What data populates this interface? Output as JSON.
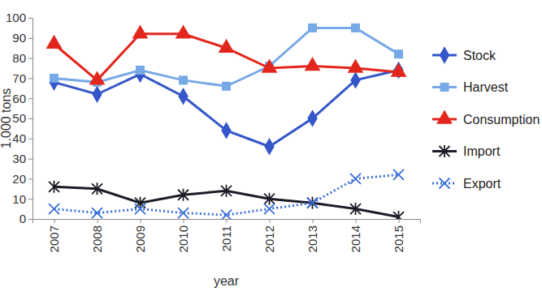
{
  "chart_data": {
    "type": "line",
    "x_label": "year",
    "y_label": "1.000 tons",
    "categories": [
      "2007",
      "2008",
      "2009",
      "2010",
      "2011",
      "2012",
      "2013",
      "2014",
      "2015"
    ],
    "series": [
      {
        "name": "Stock",
        "color": "#3456c8",
        "marker": "diamond",
        "line_style": "solid",
        "values": [
          68,
          62,
          72,
          61,
          44,
          36,
          50,
          69,
          74
        ]
      },
      {
        "name": "Harvest",
        "color": "#77a9e6",
        "marker": "square",
        "line_style": "solid",
        "values": [
          70,
          68,
          74,
          69,
          66,
          76,
          95,
          95,
          82
        ]
      },
      {
        "name": "Consumption",
        "color": "#e3261c",
        "marker": "triangle",
        "line_style": "solid",
        "values": [
          87,
          69,
          92,
          92,
          85,
          75,
          76,
          75,
          73
        ]
      },
      {
        "name": "Import",
        "color": "#1c1c28",
        "marker": "star",
        "line_style": "solid",
        "values": [
          16,
          15,
          8,
          12,
          14,
          10,
          8,
          5,
          1
        ]
      },
      {
        "name": "Export",
        "color": "#3a6fd8",
        "marker": "x",
        "line_style": "dotted",
        "values": [
          5,
          3,
          5,
          3,
          2,
          5,
          8,
          20,
          22
        ]
      }
    ],
    "ylim": [
      0,
      100
    ],
    "yticks": [
      0,
      10,
      20,
      30,
      40,
      50,
      60,
      70,
      80,
      90,
      100
    ],
    "grid": false,
    "legend": "right"
  }
}
